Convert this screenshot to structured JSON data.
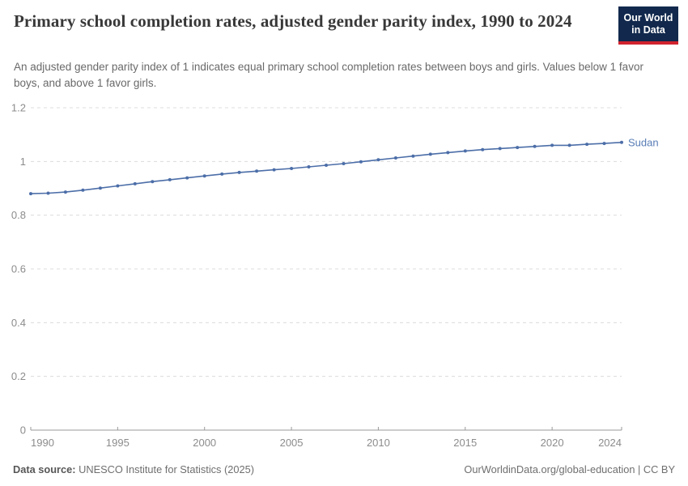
{
  "header": {
    "title": "Primary school completion rates, adjusted gender parity index, 1990 to 2024",
    "subtitle": "An adjusted gender parity index of 1 indicates equal primary school completion rates between boys and girls. Values below 1 favor boys, and above 1 favor girls.",
    "logo": {
      "line1": "Our World",
      "line2": "in Data",
      "bg_color": "#12294d",
      "accent_color": "#d0232e"
    }
  },
  "chart_data": {
    "type": "line",
    "title": "Primary school completion rates, adjusted gender parity index, 1990 to 2024",
    "xlabel": "",
    "ylabel": "",
    "xlim": [
      1990,
      2024
    ],
    "ylim": [
      0,
      1.2
    ],
    "xticks": [
      1990,
      1995,
      2000,
      2005,
      2010,
      2015,
      2020,
      2024
    ],
    "yticks": [
      0,
      0.2,
      0.4,
      0.6,
      0.8,
      1,
      1.2
    ],
    "grid": "horizontal-dashed",
    "legend_position": "end-of-line-label",
    "series": [
      {
        "name": "Sudan",
        "color": "#4c6ea8",
        "x": [
          1990,
          1991,
          1992,
          1993,
          1994,
          1995,
          1996,
          1997,
          1998,
          1999,
          2000,
          2001,
          2002,
          2003,
          2004,
          2005,
          2006,
          2007,
          2008,
          2009,
          2010,
          2011,
          2012,
          2013,
          2014,
          2015,
          2016,
          2017,
          2018,
          2019,
          2020,
          2021,
          2022,
          2023,
          2024
        ],
        "values": [
          0.88,
          0.882,
          0.886,
          0.893,
          0.901,
          0.909,
          0.917,
          0.925,
          0.932,
          0.939,
          0.946,
          0.953,
          0.959,
          0.964,
          0.969,
          0.974,
          0.98,
          0.986,
          0.992,
          0.999,
          1.006,
          1.013,
          1.02,
          1.027,
          1.033,
          1.039,
          1.044,
          1.048,
          1.052,
          1.056,
          1.06,
          1.06,
          1.064,
          1.067,
          1.071
        ]
      }
    ]
  },
  "footer": {
    "source_label": "Data source:",
    "source_text": "UNESCO Institute for Statistics (2025)",
    "credit": "OurWorldinData.org/global-education | CC BY"
  }
}
